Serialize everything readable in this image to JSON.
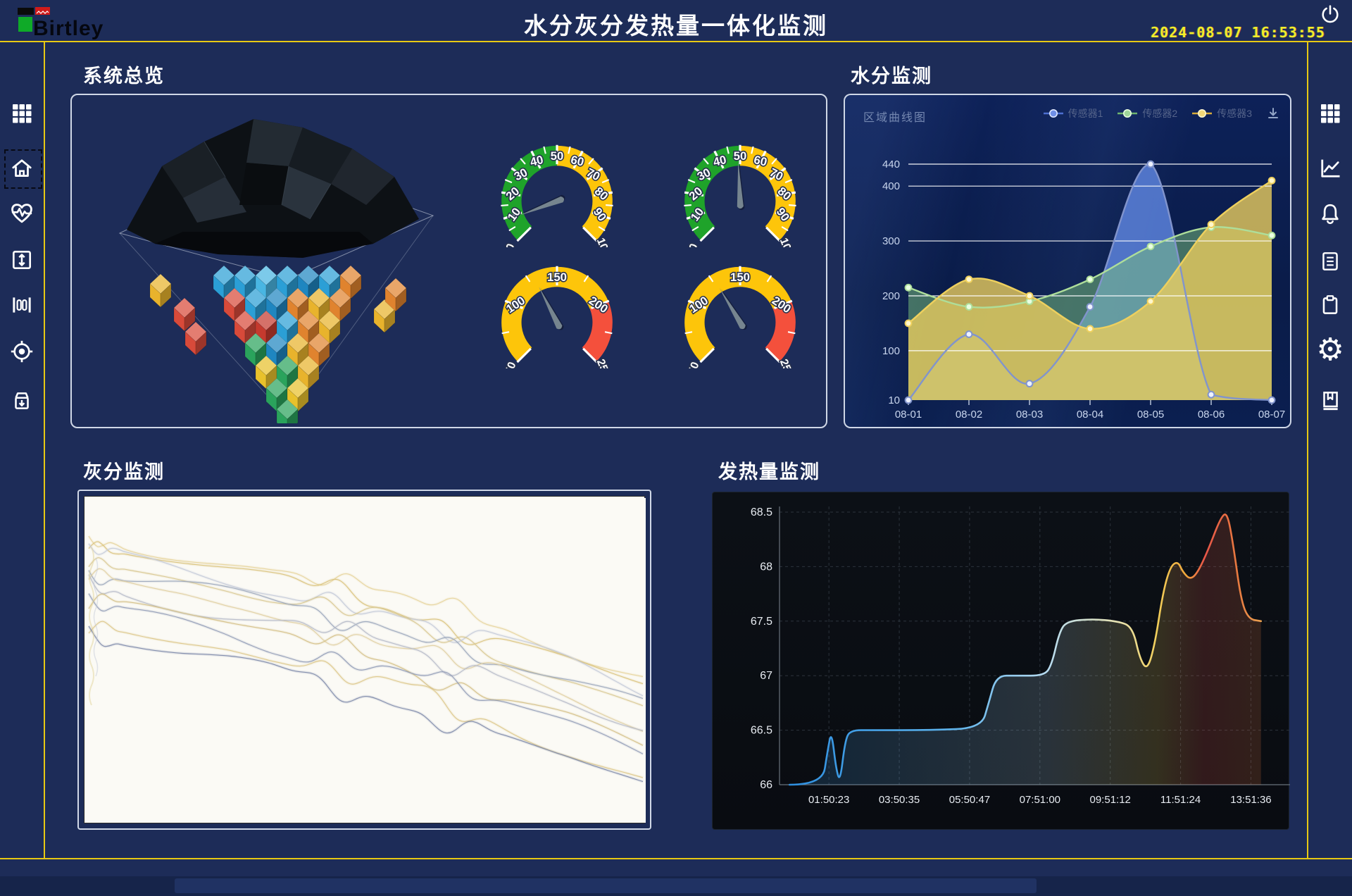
{
  "colors": {
    "background": "#1d2c58",
    "frame_yellow": "#e8c913",
    "panel_border": "#e9f0fa",
    "clock_yellow": "#f0ee2a",
    "gauge_green": "#1fa32a",
    "gauge_yellow": "#fdc50a",
    "gauge_red": "#f4503c",
    "gauge_needle": "#76858f",
    "series_blue": "#5c82dc",
    "series_green": "#7cc47c",
    "series_yellow": "#e8cc5e",
    "calorific_line_blue": "#2e8fe0",
    "calorific_line_red": "#e85548"
  },
  "header": {
    "logo_text": "Birtley",
    "title": "水分灰分发热量一体化监测",
    "datetime": "2024-08-07 16:53:55"
  },
  "sidebar_left": [
    "menu-grid",
    "home",
    "health-monitor",
    "vertical-range",
    "measure-bars",
    "target",
    "archive-download"
  ],
  "sidebar_right": [
    "menu-grid",
    "trend-chart",
    "alarm-bell",
    "report-document",
    "clipboard",
    "settings-gear",
    "logbook"
  ],
  "panels": {
    "overview": {
      "title": "系统总览"
    },
    "moisture": {
      "title": "水分监测",
      "chart_label": "区域曲线图",
      "legend": [
        "传感器1",
        "传感器2",
        "传感器3"
      ]
    },
    "ash": {
      "title": "灰分监测"
    },
    "calorific": {
      "title": "发热量监测"
    }
  },
  "chart_data": [
    {
      "id": "gauge1",
      "type": "gauge",
      "min": 0,
      "max": 100,
      "value": 9,
      "zones": [
        {
          "from": 0,
          "to": 50,
          "color": "#1fa32a"
        },
        {
          "from": 50,
          "to": 100,
          "color": "#fdc50a"
        }
      ],
      "major_step": 10,
      "minor_step": 5
    },
    {
      "id": "gauge2",
      "type": "gauge",
      "min": 0,
      "max": 100,
      "value": 49,
      "zones": [
        {
          "from": 0,
          "to": 50,
          "color": "#1fa32a"
        },
        {
          "from": 50,
          "to": 100,
          "color": "#fdc50a"
        }
      ],
      "major_step": 10,
      "minor_step": 5
    },
    {
      "id": "gauge3",
      "type": "gauge",
      "min": 50,
      "max": 250,
      "value": 130,
      "zones": [
        {
          "from": 50,
          "to": 200,
          "color": "#fdc50a"
        },
        {
          "from": 200,
          "to": 250,
          "color": "#f4503c"
        }
      ],
      "major_step": 50,
      "minor_step": 25
    },
    {
      "id": "gauge4",
      "type": "gauge",
      "min": 50,
      "max": 250,
      "value": 127,
      "zones": [
        {
          "from": 50,
          "to": 200,
          "color": "#fdc50a"
        },
        {
          "from": 200,
          "to": 250,
          "color": "#f4503c"
        }
      ],
      "major_step": 50,
      "minor_step": 25
    },
    {
      "id": "moisture",
      "type": "area",
      "title": "区域曲线图",
      "categories": [
        "08-01",
        "08-02",
        "08-03",
        "08-04",
        "08-05",
        "08-06",
        "08-07"
      ],
      "y_ticks": [
        10,
        100,
        200,
        300,
        400,
        440
      ],
      "ylim": [
        10,
        440
      ],
      "legend_position": "top-right",
      "series": [
        {
          "name": "传感器1",
          "color": "#5c82dc",
          "line": "#8194cc",
          "marker": "#eef2ff",
          "fill_opacity": 0.85,
          "values": [
            10,
            130,
            40,
            180,
            440,
            20,
            10
          ]
        },
        {
          "name": "传感器2",
          "color": "#7cc47c",
          "line": "#aede9a",
          "marker": "#eaffe2",
          "fill_opacity": 0.5,
          "values": [
            215,
            180,
            190,
            230,
            290,
            325,
            310
          ]
        },
        {
          "name": "传感器3",
          "color": "#e8cc5e",
          "line": "#eed05e",
          "marker": "#fff7cc",
          "fill_opacity": 0.8,
          "values": [
            150,
            230,
            200,
            140,
            190,
            330,
            410
          ]
        }
      ]
    },
    {
      "id": "ash",
      "type": "line",
      "title": "灰分监测趋势",
      "grid": false,
      "axes_labeled": false,
      "x_pcts": [
        0,
        8,
        17,
        25,
        33,
        42,
        47,
        53,
        60,
        66,
        75,
        87,
        100
      ],
      "series": [
        {
          "color": "#e6d49a",
          "values": [
            10,
            13,
            16,
            19,
            22,
            25,
            27,
            29,
            33,
            37,
            41,
            48,
            57
          ]
        },
        {
          "color": "#d9c27a",
          "values": [
            13,
            16,
            19,
            22,
            25,
            28,
            30,
            32,
            36,
            41,
            45,
            52,
            61
          ]
        },
        {
          "color": "#c3cad8",
          "values": [
            16,
            19,
            22,
            25,
            28,
            31,
            33,
            35,
            39,
            42,
            46,
            53,
            62
          ]
        },
        {
          "color": "#d8c890",
          "values": [
            18,
            21,
            24,
            27,
            31,
            34,
            36,
            38,
            42,
            46,
            51,
            58,
            67
          ]
        },
        {
          "color": "#9aa6bb",
          "values": [
            21,
            24,
            27,
            30,
            33,
            36,
            38,
            40,
            44,
            48,
            52,
            59,
            68
          ]
        },
        {
          "color": "#e0cfa0",
          "values": [
            24,
            27,
            30,
            34,
            37,
            40,
            42,
            45,
            49,
            53,
            57,
            65,
            75
          ]
        },
        {
          "color": "#b5bac8",
          "values": [
            27,
            30,
            33,
            36,
            39,
            42,
            44,
            46,
            50,
            54,
            58,
            65,
            74
          ]
        },
        {
          "color": "#d4bf85",
          "values": [
            30,
            33,
            37,
            40,
            43,
            47,
            49,
            51,
            55,
            60,
            64,
            72,
            82
          ]
        },
        {
          "color": "#8f9ab5",
          "values": [
            34,
            37,
            40,
            43,
            47,
            50,
            52,
            54,
            58,
            62,
            67,
            74,
            83
          ]
        },
        {
          "color": "#dcc788",
          "values": [
            38,
            41,
            45,
            48,
            52,
            55,
            58,
            60,
            64,
            69,
            74,
            82,
            92
          ]
        },
        {
          "color": "#7c88a8",
          "values": [
            43,
            46,
            50,
            53,
            56,
            60,
            62,
            64,
            68,
            73,
            77,
            85,
            95
          ]
        }
      ]
    },
    {
      "id": "calorific",
      "type": "line",
      "y_ticks": [
        66,
        66.5,
        67,
        67.5,
        68,
        68.5
      ],
      "ylim": [
        66,
        68.5
      ],
      "x_labels": [
        "01:50:23",
        "03:50:35",
        "05:50:47",
        "07:51:00",
        "09:51:12",
        "11:51:24",
        "13:51:36"
      ],
      "points": [
        [
          0.02,
          66
        ],
        [
          0.085,
          66
        ],
        [
          0.095,
          66.3
        ],
        [
          0.103,
          66.5
        ],
        [
          0.112,
          66.15
        ],
        [
          0.12,
          66.02
        ],
        [
          0.13,
          66.4
        ],
        [
          0.14,
          66.5
        ],
        [
          0.183,
          66.5
        ],
        [
          0.3,
          66.5
        ],
        [
          0.4,
          66.52
        ],
        [
          0.415,
          66.75
        ],
        [
          0.43,
          67.0
        ],
        [
          0.47,
          67.0
        ],
        [
          0.525,
          67.0
        ],
        [
          0.54,
          67.1
        ],
        [
          0.555,
          67.4
        ],
        [
          0.57,
          67.5
        ],
        [
          0.62,
          67.52
        ],
        [
          0.67,
          67.5
        ],
        [
          0.7,
          67.45
        ],
        [
          0.715,
          67.15
        ],
        [
          0.73,
          67.05
        ],
        [
          0.745,
          67.3
        ],
        [
          0.76,
          67.75
        ],
        [
          0.775,
          68.0
        ],
        [
          0.79,
          68.05
        ],
        [
          0.8,
          67.95
        ],
        [
          0.815,
          67.88
        ],
        [
          0.83,
          67.95
        ],
        [
          0.85,
          68.15
        ],
        [
          0.875,
          68.45
        ],
        [
          0.888,
          68.5
        ],
        [
          0.9,
          68.2
        ],
        [
          0.915,
          67.7
        ],
        [
          0.93,
          67.52
        ],
        [
          0.955,
          67.5
        ]
      ]
    }
  ]
}
